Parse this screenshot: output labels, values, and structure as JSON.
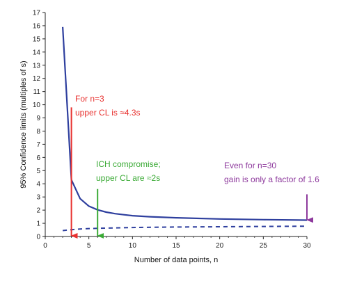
{
  "chart_data": {
    "type": "line",
    "xlabel": "Number of data points, n",
    "ylabel": "95% Confidence limits (multiples of s)",
    "xlim": [
      0,
      30
    ],
    "ylim": [
      0,
      17
    ],
    "x_ticks": [
      "0",
      "5",
      "10",
      "15",
      "20",
      "25",
      "30"
    ],
    "y_ticks": [
      "0",
      "1",
      "2",
      "3",
      "4",
      "5",
      "6",
      "7",
      "8",
      "9",
      "10",
      "11",
      "12",
      "13",
      "14",
      "15",
      "16",
      "17"
    ],
    "grid": false,
    "series": [
      {
        "style": "solid",
        "color": "#2e3f9e",
        "x": [
          2,
          3,
          4,
          5,
          6,
          7,
          8,
          9,
          10,
          12,
          15,
          20,
          25,
          30
        ],
        "y": [
          15.9,
          4.3,
          2.87,
          2.3,
          2.02,
          1.85,
          1.73,
          1.65,
          1.58,
          1.5,
          1.42,
          1.33,
          1.28,
          1.24
        ]
      },
      {
        "style": "dashed",
        "color": "#2e3f9e",
        "x": [
          2,
          3,
          4,
          5,
          6,
          8,
          10,
          15,
          20,
          25,
          30
        ],
        "y": [
          0.45,
          0.52,
          0.57,
          0.6,
          0.62,
          0.65,
          0.68,
          0.72,
          0.74,
          0.76,
          0.78
        ]
      }
    ],
    "annotations": [
      {
        "lines": [
          "For n=3",
          "upper CL is ≈4.3s"
        ],
        "color": "#e8312f",
        "arrow_x": 3,
        "arrow_from_y": 9.8,
        "arrow_to_y": 0
      },
      {
        "lines": [
          "ICH compromise;",
          "upper CL are ≈2s"
        ],
        "color": "#3aaa35",
        "arrow_x": 6,
        "arrow_from_y": 3.6,
        "arrow_to_y": 0
      },
      {
        "lines": [
          "Even for n=30",
          "gain is only a factor of 1.6"
        ],
        "color": "#8e3a9d",
        "arrow_x": 30,
        "arrow_from_y": 3.2,
        "arrow_to_y": 1.2
      }
    ]
  }
}
